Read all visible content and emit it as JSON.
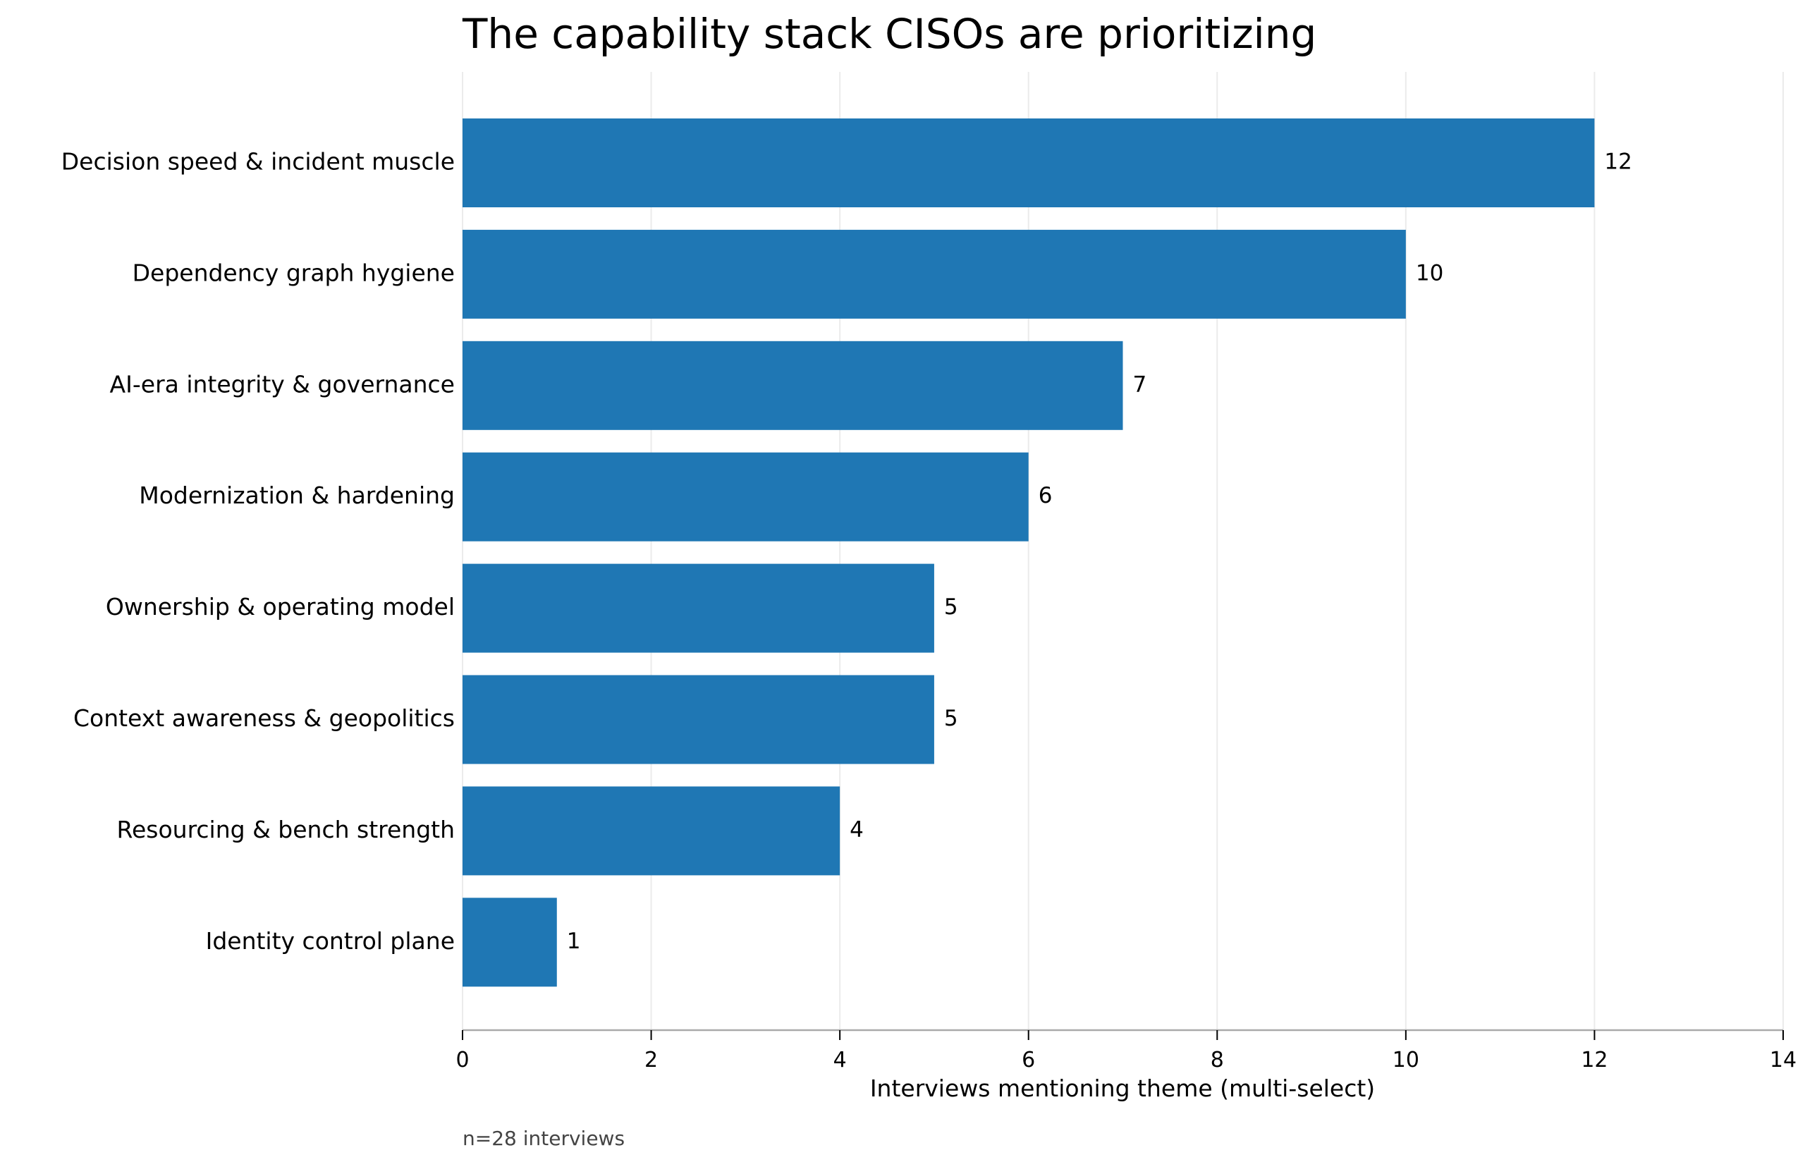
{
  "chart_data": {
    "type": "bar",
    "orientation": "horizontal",
    "title": "The capability stack CISOs are prioritizing",
    "xlabel": "Interviews mentioning theme (multi-select)",
    "ylabel": "",
    "footnote": "n=28 interviews",
    "categories": [
      "Decision speed & incident muscle",
      "Dependency graph hygiene",
      "AI-era integrity & governance",
      "Modernization & hardening",
      "Ownership & operating model",
      "Context awareness & geopolitics",
      "Resourcing & bench strength",
      "Identity control plane"
    ],
    "values": [
      12,
      10,
      7,
      6,
      5,
      5,
      4,
      1
    ],
    "xlim": [
      0,
      14
    ],
    "xticks": [
      "0",
      "2",
      "4",
      "6",
      "8",
      "10",
      "12",
      "14"
    ],
    "grid": "vertical",
    "data_labels": true,
    "bar_color": "#1f77b4"
  }
}
